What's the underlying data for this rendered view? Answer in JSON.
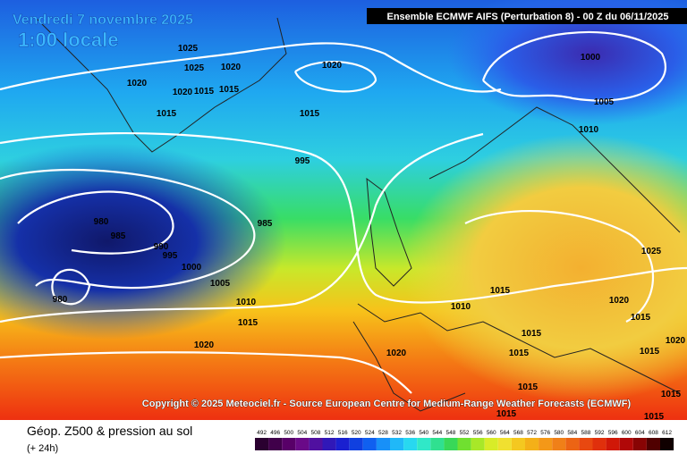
{
  "header": {
    "date": "Vendredi 7 novembre 2025",
    "time": "1:00 locale",
    "model": "Ensemble ECMWF AIFS  (Perturbation 8)  -  00 Z du 06/11/2025"
  },
  "copyright": "Copyright © 2025 Meteociel.fr - Source European Centre for Medium-Range Weather Forecasts (ECMWF)",
  "footer": {
    "title": "Géop. Z500 & pression au sol",
    "lead": "(+ 24h)"
  },
  "scale": [
    "492",
    "496",
    "500",
    "504",
    "508",
    "512",
    "516",
    "520",
    "524",
    "528",
    "532",
    "536",
    "540",
    "544",
    "548",
    "552",
    "556",
    "560",
    "564",
    "568",
    "572",
    "576",
    "580",
    "584",
    "588",
    "592",
    "596",
    "600",
    "604",
    "608",
    "612"
  ],
  "isobars": [
    "1025",
    "1025",
    "1020",
    "1020",
    "1020",
    "1015",
    "1015",
    "1015",
    "1015",
    "1020",
    "1000",
    "1005",
    "1010",
    "995",
    "980",
    "985",
    "985",
    "990",
    "995",
    "1000",
    "1005",
    "1010",
    "1015",
    "980",
    "1020",
    "1015",
    "1010",
    "1020",
    "1015",
    "1025",
    "1015",
    "1020",
    "1015",
    "1015",
    "1020",
    "1015",
    "1015",
    "1015",
    "1015"
  ]
}
